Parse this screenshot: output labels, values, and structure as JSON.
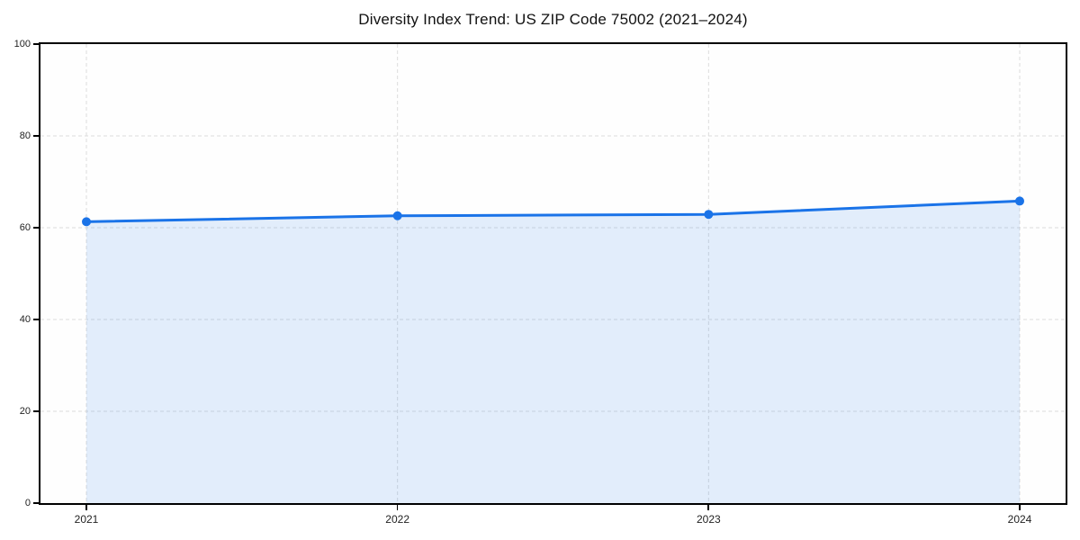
{
  "page": {
    "background": "#ffffff"
  },
  "chart_data": {
    "type": "line",
    "title": "Diversity Index Trend: US ZIP Code 75002 (2021–2024)",
    "x": [
      "2021",
      "2022",
      "2023",
      "2024"
    ],
    "series": [
      {
        "name": "Diversity Index",
        "values": [
          61.3,
          62.6,
          62.9,
          65.8
        ]
      }
    ],
    "xlabel": "",
    "ylabel": "",
    "ylim": [
      0,
      100
    ],
    "yticks": [
      0,
      20,
      40,
      60,
      80,
      100
    ],
    "grid": {
      "style": "dashed",
      "horizontal": true,
      "vertical": true,
      "color": "#dcdcdc"
    },
    "legend": "none",
    "area_fill": true,
    "marker": "circle",
    "colors": {
      "line": "#1a73e8",
      "area_fill": "rgba(26,115,232,0.12)",
      "axis": "#000000",
      "tick_label": "#222222",
      "title": "#111111",
      "plot_background": "#fefefe"
    }
  }
}
